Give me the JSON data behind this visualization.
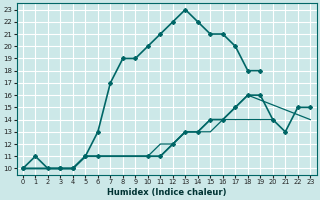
{
  "xlabel": "Humidex (Indice chaleur)",
  "bg_color": "#cce8e8",
  "grid_color": "#ffffff",
  "line_color": "#006666",
  "xlim": [
    -0.5,
    23.5
  ],
  "ylim": [
    9.5,
    23.5
  ],
  "xticks": [
    0,
    1,
    2,
    3,
    4,
    5,
    6,
    7,
    8,
    9,
    10,
    11,
    12,
    13,
    14,
    15,
    16,
    17,
    18,
    19,
    20,
    21,
    22,
    23
  ],
  "yticks": [
    10,
    11,
    12,
    13,
    14,
    15,
    16,
    17,
    18,
    19,
    20,
    21,
    22,
    23
  ],
  "line1_x": [
    0,
    1,
    2,
    3,
    4,
    5,
    6,
    7,
    8,
    9,
    10,
    11,
    12,
    13,
    14,
    15,
    16,
    17,
    18,
    19
  ],
  "line1_y": [
    10,
    11,
    10,
    10,
    10,
    11,
    13,
    17,
    19,
    19,
    20,
    21,
    22,
    23,
    22,
    21,
    21,
    20,
    18,
    18
  ],
  "line2_x": [
    0,
    3,
    4,
    5,
    6,
    10,
    11,
    12,
    13,
    14,
    15,
    16,
    17,
    18,
    19,
    20,
    21,
    22,
    23
  ],
  "line2_y": [
    10,
    10,
    10,
    11,
    11,
    11,
    11,
    12,
    13,
    13,
    14,
    14,
    15,
    16,
    16,
    14,
    13,
    15,
    15
  ],
  "line3_x": [
    0,
    3,
    4,
    5,
    6,
    10,
    11,
    12,
    13,
    14,
    15,
    16,
    17,
    18,
    23
  ],
  "line3_y": [
    10,
    10,
    10,
    11,
    11,
    11,
    11,
    12,
    13,
    13,
    14,
    14,
    15,
    16,
    14
  ],
  "line4_x": [
    0,
    3,
    4,
    5,
    6,
    10,
    11,
    12,
    13,
    14,
    15,
    16,
    17,
    18,
    19,
    20
  ],
  "line4_y": [
    10,
    10,
    10,
    11,
    11,
    11,
    12,
    12,
    13,
    13,
    13,
    14,
    14,
    14,
    14,
    14
  ]
}
